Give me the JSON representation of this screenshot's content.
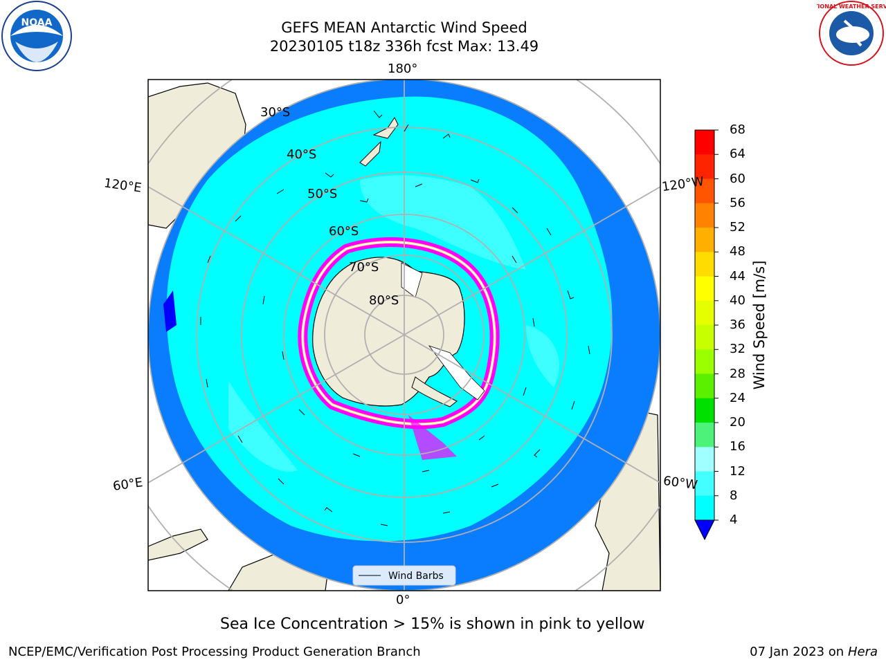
{
  "header": {
    "title_line1": "GEFS MEAN Antarctic Wind Speed",
    "title_line2": "20230105 t18z 336h fcst   Max: 13.49"
  },
  "logos": {
    "left": "NOAA",
    "right": "NATIONAL WEATHER SERVICE",
    "left_ring_text": "NATIONAL OCEANIC AND ATMOSPHERIC ADMINISTRATION · U.S. DEPARTMENT OF COMMERCE"
  },
  "map": {
    "projection": "south-polar-stereographic",
    "longitude_labels": {
      "top": "180°",
      "bottom": "0°",
      "upper_left": "120°E",
      "upper_right": "120°W",
      "lower_left": "60°E",
      "lower_right": "60°W"
    },
    "latitude_labels": [
      "30°S",
      "40°S",
      "50°S",
      "60°S",
      "70°S",
      "80°S"
    ],
    "legend_label": "Wind Barbs",
    "caption": "Sea Ice Concentration > 15% is shown in pink to yellow",
    "colors": {
      "ocean_4_8": "#0a7dff",
      "ocean_8_12": "#00ffff",
      "ocean_12_16": "#44ffff",
      "land": "#efecda",
      "sea_ice": [
        "#ff00ff",
        "#ffaacc",
        "#ffd36a",
        "#ffffff"
      ]
    }
  },
  "colorbar": {
    "label": "Wind Speed [m/s]",
    "ticks": [
      "68",
      "64",
      "60",
      "56",
      "52",
      "48",
      "44",
      "40",
      "36",
      "32",
      "28",
      "24",
      "20",
      "16",
      "12",
      "8",
      "4"
    ],
    "colors": [
      "#ff0000",
      "#ff2400",
      "#ff5400",
      "#ff8200",
      "#ffaf00",
      "#ffdc00",
      "#ffff00",
      "#e6ff00",
      "#c7ff00",
      "#9bff00",
      "#5af000",
      "#00e000",
      "#4cf27a",
      "#a0ffff",
      "#44ffff",
      "#00ffff",
      "#0a7dff"
    ],
    "under_color": "#0000ff"
  },
  "footer": {
    "left": "NCEP/EMC/Verification Post Processing Product Generation Branch",
    "right_date": "07 Jan 2023 on",
    "right_host": "Hera"
  }
}
